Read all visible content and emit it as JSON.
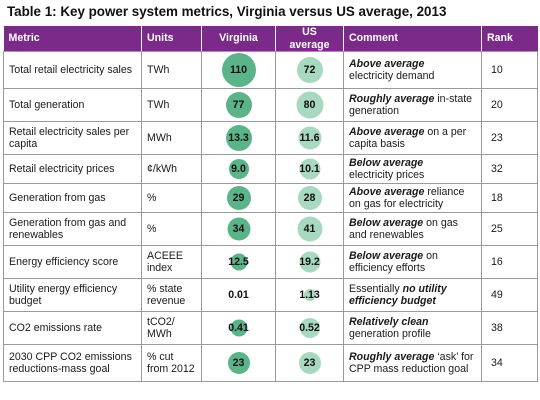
{
  "title": "Table 1: Key power system metrics, Virginia versus US average, 2013",
  "headers": {
    "metric": "Metric",
    "units": "Units",
    "virginia": "Virginia",
    "us_average": "US average",
    "comment": "Comment",
    "rank": "Rank"
  },
  "colors": {
    "header_bg": "#7b2a8a",
    "virginia_bubble": "#5bb489",
    "us_bubble": "#a8d8bf"
  },
  "rows": [
    {
      "metric": "Total retail electricity sales",
      "units": "TWh",
      "virginia": "110",
      "us": "72",
      "comment_bold": "Above average",
      "comment_rest": "electricity demand",
      "comment_bold_2": "",
      "rank": "10"
    },
    {
      "metric": "Total generation",
      "units": "TWh",
      "virginia": "77",
      "us": "80",
      "comment_bold": "Roughly average",
      "comment_rest": "in-state generation",
      "comment_bold_2": "",
      "rank": "20"
    },
    {
      "metric": "Retail electricity sales per capita",
      "units": "MWh",
      "virginia": "13.3",
      "us": "11.6",
      "comment_bold": "Above average",
      "comment_rest": "on a per capita basis",
      "comment_bold_2": "",
      "rank": "23"
    },
    {
      "metric": "Retail electricity prices",
      "units": "¢/kWh",
      "virginia": "9.0",
      "us": "10.1",
      "comment_bold": "Below average",
      "comment_rest": "electricity prices",
      "comment_bold_2": "",
      "rank": "32"
    },
    {
      "metric": "Generation from gas",
      "units": "%",
      "virginia": "29",
      "us": "28",
      "comment_bold": "Above average",
      "comment_rest": "reliance on gas for electricity",
      "comment_bold_2": "",
      "rank": "18"
    },
    {
      "metric": "Generation from gas and renewables",
      "units": "%",
      "virginia": "34",
      "us": "41",
      "comment_bold": "Below average",
      "comment_rest": "on gas and renewables",
      "comment_bold_2": "",
      "rank": "25"
    },
    {
      "metric": "Energy efficiency score",
      "units": "ACEEE index",
      "virginia": "12.5",
      "us": "19.2",
      "comment_bold": "Below average",
      "comment_rest": "on efficiency efforts",
      "comment_bold_2": "",
      "rank": "16"
    },
    {
      "metric": "Utility energy efficiency budget",
      "units": "% state revenue",
      "virginia": "0.01",
      "us": "1.13",
      "comment_bold": "",
      "comment_rest": "Essentially",
      "comment_bold_2": "no utility efficiency budget",
      "rank": "49"
    },
    {
      "metric": "CO2 emissions rate",
      "units": "tCO2/ MWh",
      "virginia": "0.41",
      "us": "0.52",
      "comment_bold": "Relatively clean",
      "comment_rest": "generation profile",
      "comment_bold_2": "",
      "rank": "38"
    },
    {
      "metric": "2030 CPP CO2 emissions reductions-mass goal",
      "units": "% cut from 2012",
      "virginia": "23",
      "us": "23",
      "comment_bold": "Roughly average",
      "comment_rest": "‘ask’ for CPP mass reduction goal",
      "comment_bold_2": "",
      "rank": "34"
    }
  ]
}
